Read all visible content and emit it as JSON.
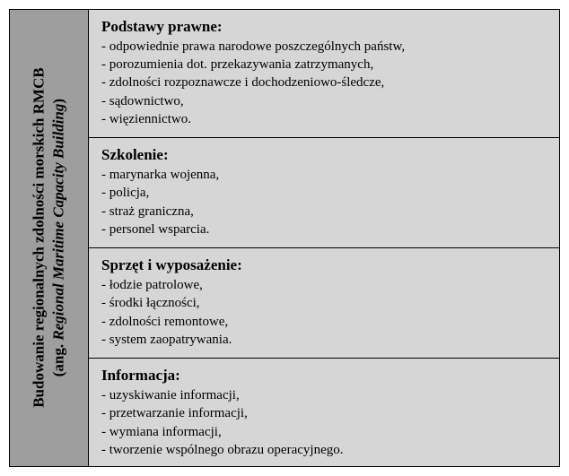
{
  "sideHeader": {
    "line1": "Budowanie regionalnych zdolności morskich RMCB",
    "line2_prefix": "(ang. ",
    "line2_italic": "Regional Maritime Capacity Building",
    "line2_suffix": ")"
  },
  "sections": [
    {
      "title": "Podstawy prawne:",
      "items": [
        "- odpowiednie prawa narodowe poszczególnych państw,",
        "- porozumienia dot. przekazywania zatrzymanych,",
        "- zdolności rozpoznawcze i dochodzeniowo-śledcze,",
        "- sądownictwo,",
        "- więziennictwo."
      ]
    },
    {
      "title": "Szkolenie:",
      "items": [
        "- marynarka wojenna,",
        "- policja,",
        "- straż graniczna,",
        "- personel wsparcia."
      ]
    },
    {
      "title": "Sprzęt i wyposażenie:",
      "items": [
        "- łodzie patrolowe,",
        "- środki łączności,",
        "- zdolności remontowe,",
        "- system zaopatrywania."
      ]
    },
    {
      "title": "Informacja:",
      "items": [
        "- uzyskiwanie informacji,",
        "- przetwarzanie informacji,",
        "- wymiana informacji,",
        "- tworzenie wspólnego obrazu operacyjnego."
      ]
    }
  ],
  "colors": {
    "side_bg": "#9e9e9e",
    "content_bg": "#d6d6d6",
    "border": "#000000",
    "text": "#000000"
  },
  "typography": {
    "title_fontsize": 17,
    "body_fontsize": 15,
    "font_family": "Times New Roman"
  }
}
